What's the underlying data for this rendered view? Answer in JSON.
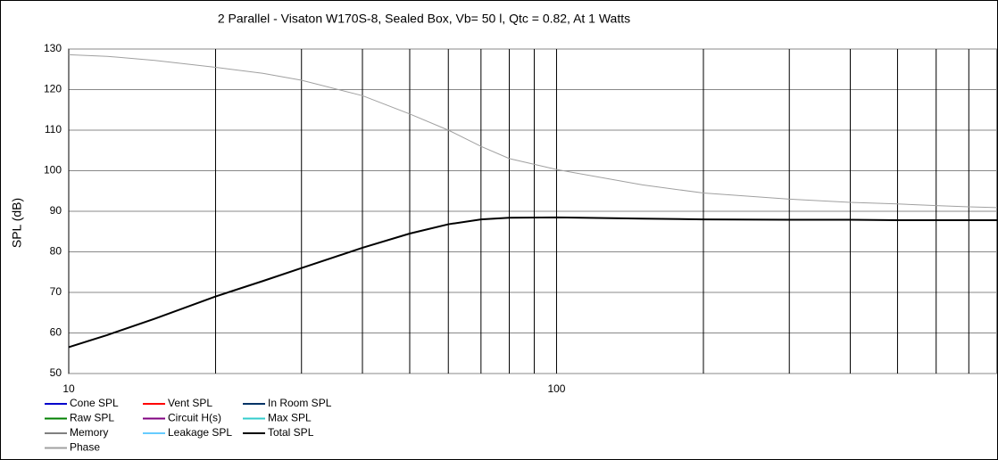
{
  "chart_data": {
    "type": "line",
    "title": "2 Parallel - Visaton W170S-8,  Sealed Box, Vb= 50 l,  Qtc = 0.82,  At 1 Watts",
    "y_label": "SPL (dB)",
    "x_scale": "log",
    "x": [
      10,
      12,
      15,
      20,
      25,
      30,
      40,
      50,
      60,
      70,
      80,
      100,
      150,
      200,
      300,
      400,
      500,
      600,
      700,
      800
    ],
    "xlim": [
      10,
      800
    ],
    "xticks": [
      10,
      100
    ],
    "x_minor_grid": [
      20,
      30,
      40,
      50,
      60,
      70,
      80,
      90,
      200,
      300,
      400,
      500,
      600,
      700
    ],
    "ylim": [
      50,
      130
    ],
    "yticks": [
      50,
      60,
      70,
      80,
      90,
      100,
      110,
      120,
      130
    ],
    "grid": true,
    "series": [
      {
        "name": "Cone SPL",
        "color": "#0000cc",
        "values": [
          56.5,
          59.5,
          63.5,
          69,
          72.8,
          76,
          81,
          84.5,
          86.8,
          88,
          88.4,
          88.5,
          88.2,
          88,
          87.9,
          87.9,
          87.8,
          87.8,
          87.8,
          87.8
        ]
      },
      {
        "name": "Vent SPL",
        "color": "#ff0000",
        "values": [
          null,
          null,
          null,
          null,
          null,
          null,
          null,
          null,
          null,
          null,
          null,
          null,
          null,
          null,
          null,
          null,
          null,
          null,
          null,
          null
        ]
      },
      {
        "name": "In Room SPL",
        "color": "#003366",
        "values": [
          null,
          null,
          null,
          null,
          null,
          null,
          null,
          null,
          null,
          null,
          null,
          null,
          null,
          null,
          null,
          null,
          null,
          null,
          null,
          null
        ]
      },
      {
        "name": "Raw SPL",
        "color": "#008000",
        "values": [
          null,
          null,
          null,
          null,
          null,
          null,
          null,
          null,
          null,
          null,
          null,
          null,
          null,
          null,
          null,
          null,
          null,
          null,
          null,
          null
        ]
      },
      {
        "name": "Circuit H(s)",
        "color": "#800080",
        "values": [
          null,
          null,
          null,
          null,
          null,
          null,
          null,
          null,
          null,
          null,
          null,
          null,
          null,
          null,
          null,
          null,
          null,
          null,
          null,
          null
        ]
      },
      {
        "name": "Max SPL",
        "color": "#33cccc",
        "values": [
          null,
          null,
          null,
          null,
          null,
          null,
          null,
          null,
          null,
          null,
          null,
          null,
          null,
          null,
          null,
          null,
          null,
          null,
          null,
          null
        ]
      },
      {
        "name": "Memory",
        "color": "#808080",
        "values": [
          null,
          null,
          null,
          null,
          null,
          null,
          null,
          null,
          null,
          null,
          null,
          null,
          null,
          null,
          null,
          null,
          null,
          null,
          null,
          null
        ]
      },
      {
        "name": "Leakage SPL",
        "color": "#66ccff",
        "values": [
          null,
          null,
          null,
          null,
          null,
          null,
          null,
          null,
          null,
          null,
          null,
          null,
          null,
          null,
          null,
          null,
          null,
          null,
          null,
          null
        ]
      },
      {
        "name": "Total SPL",
        "color": "#000000",
        "values": [
          56.5,
          59.5,
          63.5,
          69,
          72.8,
          76,
          81,
          84.5,
          86.8,
          88,
          88.4,
          88.5,
          88.2,
          88,
          87.9,
          87.9,
          87.8,
          87.8,
          87.8,
          87.8
        ]
      },
      {
        "name": "Phase",
        "color": "#a0a0a0",
        "values": [
          128.6,
          128.2,
          127.2,
          125.5,
          124,
          122.3,
          118.5,
          114,
          110,
          106,
          103,
          100.3,
          96.5,
          94.5,
          93,
          92.2,
          91.8,
          91.4,
          91.1,
          90.9
        ]
      }
    ]
  }
}
